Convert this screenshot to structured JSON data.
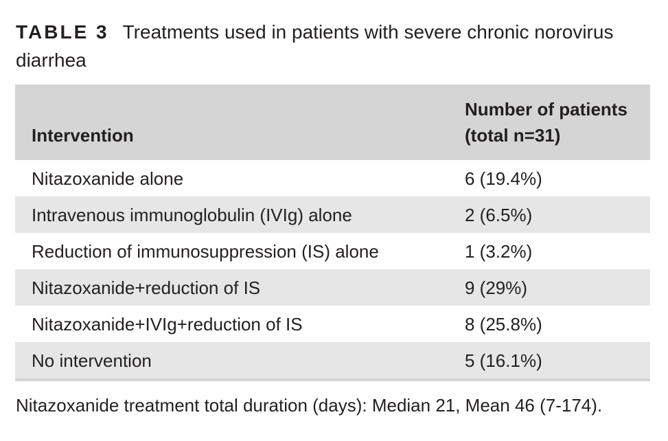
{
  "caption": {
    "label": "TABLE 3",
    "title": "Treatments used in patients with severe chronic norovirus diarrhea"
  },
  "table": {
    "headers": {
      "intervention": "Intervention",
      "patients_line1": "Number of patients",
      "patients_line2": "(total n=31)"
    },
    "rows": [
      {
        "intervention": "Nitazoxanide alone",
        "patients": "6 (19.4%)"
      },
      {
        "intervention": "Intravenous immunoglobulin (IVIg) alone",
        "patients": "2 (6.5%)"
      },
      {
        "intervention": "Reduction of immunosuppression (IS) alone",
        "patients": "1 (3.2%)"
      },
      {
        "intervention": "Nitazoxanide+reduction of IS",
        "patients": "9 (29%)"
      },
      {
        "intervention": "Nitazoxanide+IVIg+reduction of IS",
        "patients": "8 (25.8%)"
      },
      {
        "intervention": "No intervention",
        "patients": "5 (16.1%)"
      }
    ]
  },
  "footnote": "Nitazoxanide treatment total duration (days): Median 21, Mean 46 (7-174).",
  "colors": {
    "header_bg": "#d5d5d6",
    "shaded_row_bg": "#e6e6e7",
    "text": "#231f20"
  }
}
